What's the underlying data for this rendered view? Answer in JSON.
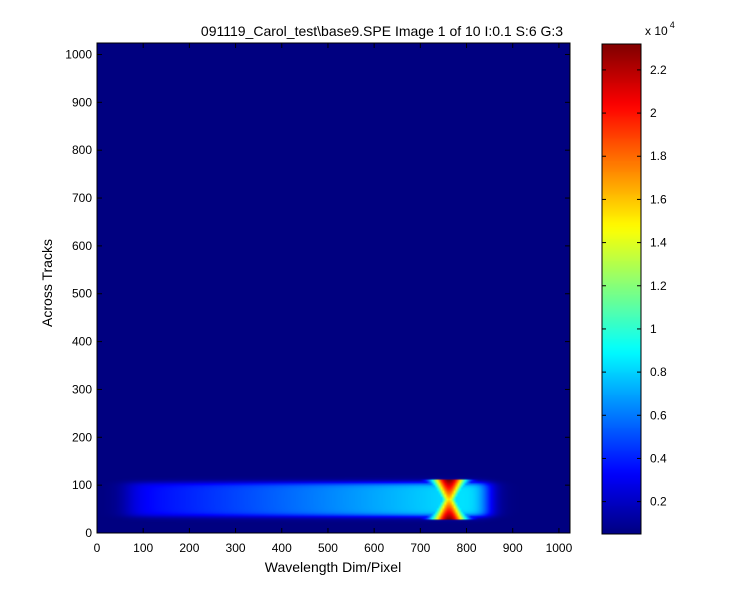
{
  "chart_data": {
    "type": "heatmap",
    "title": "091119_Carol_test\\base9.SPE  Image 1 of 10  I:0.1  S:6  G:3",
    "xlabel": "Wavelength Dim/Pixel",
    "ylabel": "Across Tracks",
    "xlim": [
      0,
      1024
    ],
    "ylim": [
      0,
      1024
    ],
    "xticks": [
      0,
      100,
      200,
      300,
      400,
      500,
      600,
      700,
      800,
      900,
      1000
    ],
    "yticks": [
      0,
      100,
      200,
      300,
      400,
      500,
      600,
      700,
      800,
      900,
      1000
    ],
    "colormap": "jet",
    "background_value": 500,
    "colorbar": {
      "range": [
        500,
        23200
      ],
      "ticks": [
        2000,
        4000,
        6000,
        8000,
        10000,
        12000,
        14000,
        16000,
        18000,
        20000,
        22000
      ],
      "tick_labels": [
        "0.2",
        "0.4",
        "0.6",
        "0.8",
        "1",
        "1.2",
        "1.4",
        "1.6",
        "1.8",
        "2",
        "2.2"
      ],
      "exponent_label": "x 10",
      "exponent": "4"
    },
    "features": [
      {
        "kind": "band",
        "x_range": [
          45,
          865
        ],
        "y_center": 70,
        "half_height": 35,
        "value_start": 3000,
        "value_end": 9000
      },
      {
        "kind": "hotspot",
        "x_center": 762,
        "y_range": [
          30,
          110
        ],
        "peak_value": 23200
      }
    ]
  }
}
